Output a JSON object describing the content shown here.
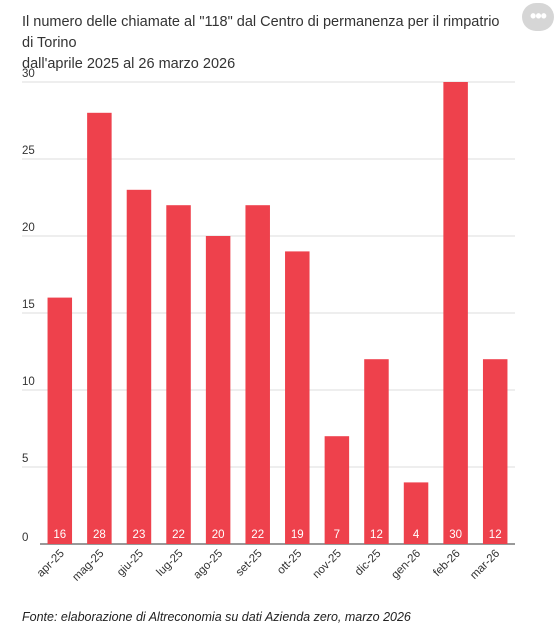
{
  "header": {
    "title_line1": "Il numero delle chiamate al \"118\" dal Centro di permanenza per il rimpatrio di Torino",
    "title_line2": "dall'aprile 2025 al 26 marzo 2026"
  },
  "menu": {
    "icon": "more-options-icon",
    "label": "•••"
  },
  "footer": {
    "source": "Fonte: elaborazione di Altreconomia su dati Azienda zero, marzo 2026"
  },
  "colors": {
    "bar": "#ee414c",
    "grid": "#dddddd",
    "axis": "#333333",
    "label": "#ffffff"
  },
  "chart_data": {
    "type": "bar",
    "title": "Il numero delle chiamate al \"118\" dal Centro di permanenza per il rimpatrio di Torino dall'aprile 2025 al 26 marzo 2026",
    "categories": [
      "apr-25",
      "mag-25",
      "giu-25",
      "lug-25",
      "ago-25",
      "set-25",
      "ott-25",
      "nov-25",
      "dic-25",
      "gen-26",
      "feb-26",
      "mar-26"
    ],
    "values": [
      16,
      28,
      23,
      22,
      20,
      22,
      19,
      7,
      12,
      4,
      30,
      12
    ],
    "yticks": [
      0,
      5,
      10,
      15,
      20,
      25,
      30
    ],
    "ylim": [
      0,
      30
    ],
    "xlabel": "",
    "ylabel": "",
    "grid": true,
    "data_labels": "inside-bottom"
  }
}
